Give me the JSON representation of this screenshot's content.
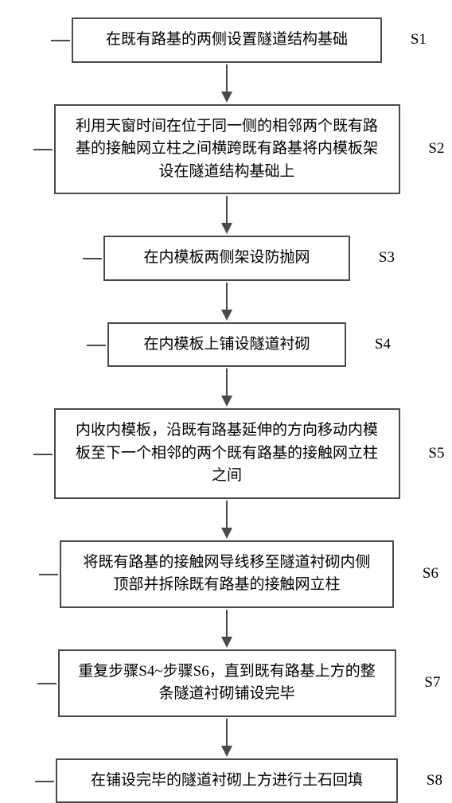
{
  "flowchart": {
    "type": "flowchart",
    "background_color": "#ffffff",
    "border_color": "#4a4a4a",
    "text_color": "#000000",
    "font_size": 19,
    "line_height": 1.5,
    "border_width": 2,
    "arrow_length": 38,
    "steps": [
      {
        "label": "S1",
        "text": "在既有路基的两侧设置隧道结构基础",
        "width_class": "box-w1"
      },
      {
        "label": "S2",
        "text": "利用天窗时间在位于同一侧的相邻两个既有路基的接触网立柱之间横跨既有路基将内模板架设在隧道结构基础上",
        "width_class": "box-w2"
      },
      {
        "label": "S3",
        "text": "在内模板两侧架设防抛网",
        "width_class": "box-w3"
      },
      {
        "label": "S4",
        "text": "在内模板上铺设隧道衬砌",
        "width_class": "box-w4"
      },
      {
        "label": "S5",
        "text": "内收内模板，沿既有路基延伸的方向移动内模板至下一个相邻的两个既有路基的接触网立柱之间",
        "width_class": "box-w5"
      },
      {
        "label": "S6",
        "text": "将既有路基的接触网导线移至隧道衬砌内侧顶部并拆除既有路基的接触网立柱",
        "width_class": "box-w6"
      },
      {
        "label": "S7",
        "text": "重复步骤S4~步骤S6，直到既有路基上方的整条隧道衬砌铺设完毕",
        "width_class": "box-w7"
      },
      {
        "label": "S8",
        "text": "在铺设完毕的隧道衬砌上方进行土石回填",
        "width_class": "box-w8"
      }
    ]
  }
}
